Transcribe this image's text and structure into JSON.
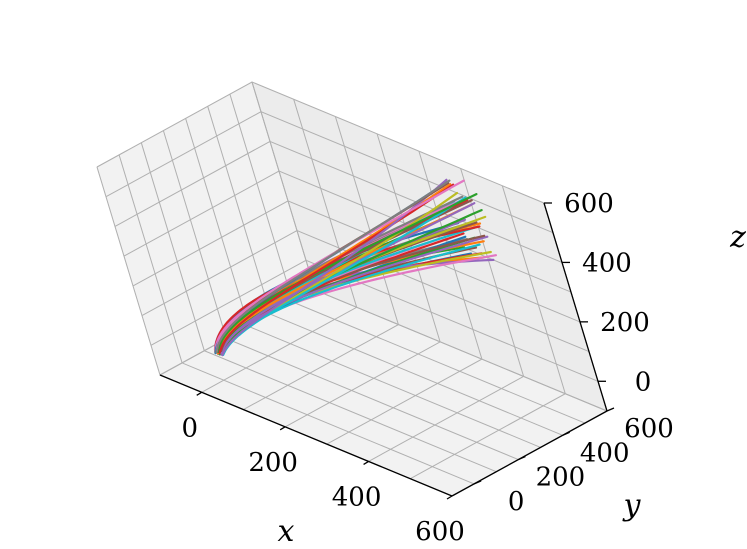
{
  "chart_data": {
    "type": "line",
    "projection": "3d",
    "grid": true,
    "xlabel": "x",
    "ylabel": "y",
    "zlabel": "z",
    "xlim": [
      -100,
      600
    ],
    "ylim": [
      -100,
      600
    ],
    "zlim": [
      -100,
      600
    ],
    "xticks": [
      "0",
      "200",
      "400",
      "600"
    ],
    "yticks": [
      "0",
      "200",
      "400",
      "600"
    ],
    "zticks": [
      "0",
      "200",
      "400",
      "600"
    ],
    "series_count": 48,
    "colors": [
      "#1f77b4",
      "#ff7f0e",
      "#2ca02c",
      "#d62728",
      "#9467bd",
      "#8c564b",
      "#e377c2",
      "#7f7f7f",
      "#bcbd22",
      "#17becf"
    ],
    "trajectory_template": {
      "start": [
        10,
        0,
        0
      ],
      "hook": [
        -40,
        140,
        40
      ],
      "middle": [
        120,
        280,
        200
      ],
      "end_range": {
        "x": [
          380,
          470
        ],
        "y": [
          520,
          560
        ],
        "z": [
          340,
          600
        ]
      }
    }
  }
}
